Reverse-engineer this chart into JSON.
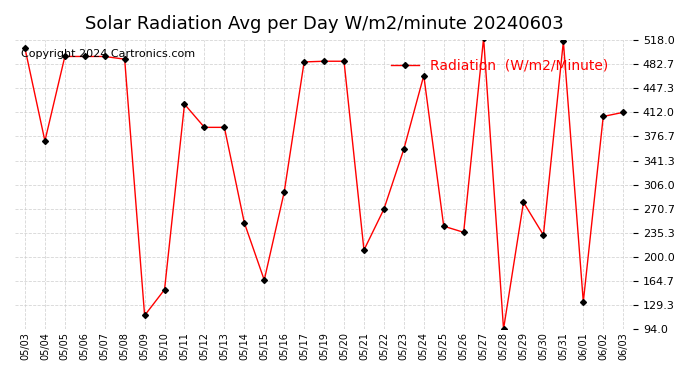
{
  "title": "Solar Radiation Avg per Day W/m2/minute 20240603",
  "copyright": "Copyright 2024 Cartronics.com",
  "legend_label": "Radiation  (W/m2/Minute)",
  "dates": [
    "05/03",
    "05/04",
    "05/05",
    "05/06",
    "05/07",
    "05/08",
    "05/09",
    "05/10",
    "05/11",
    "05/12",
    "05/13",
    "05/14",
    "05/15",
    "05/16",
    "05/17",
    "05/19",
    "05/20",
    "05/21",
    "05/22",
    "05/23",
    "05/24",
    "05/25",
    "05/26",
    "05/27",
    "05/28",
    "05/29",
    "05/30",
    "05/31",
    "06/01",
    "06/02",
    "06/03"
  ],
  "values": [
    506,
    370,
    494,
    494,
    494,
    490,
    114,
    152,
    424,
    390,
    390,
    250,
    166,
    295,
    486,
    487,
    487,
    210,
    270,
    358,
    466,
    245,
    236,
    521,
    94,
    280,
    232,
    516,
    134,
    406,
    412
  ],
  "line_color": "#ff0000",
  "marker_color": "#000000",
  "bg_color": "#ffffff",
  "grid_color": "#cccccc",
  "ylim": [
    94.0,
    518.0
  ],
  "yticks": [
    94.0,
    129.3,
    164.7,
    200.0,
    235.3,
    270.7,
    306.0,
    341.3,
    376.7,
    412.0,
    447.3,
    482.7,
    518.0
  ],
  "title_fontsize": 13,
  "copyright_fontsize": 8,
  "legend_fontsize": 10
}
